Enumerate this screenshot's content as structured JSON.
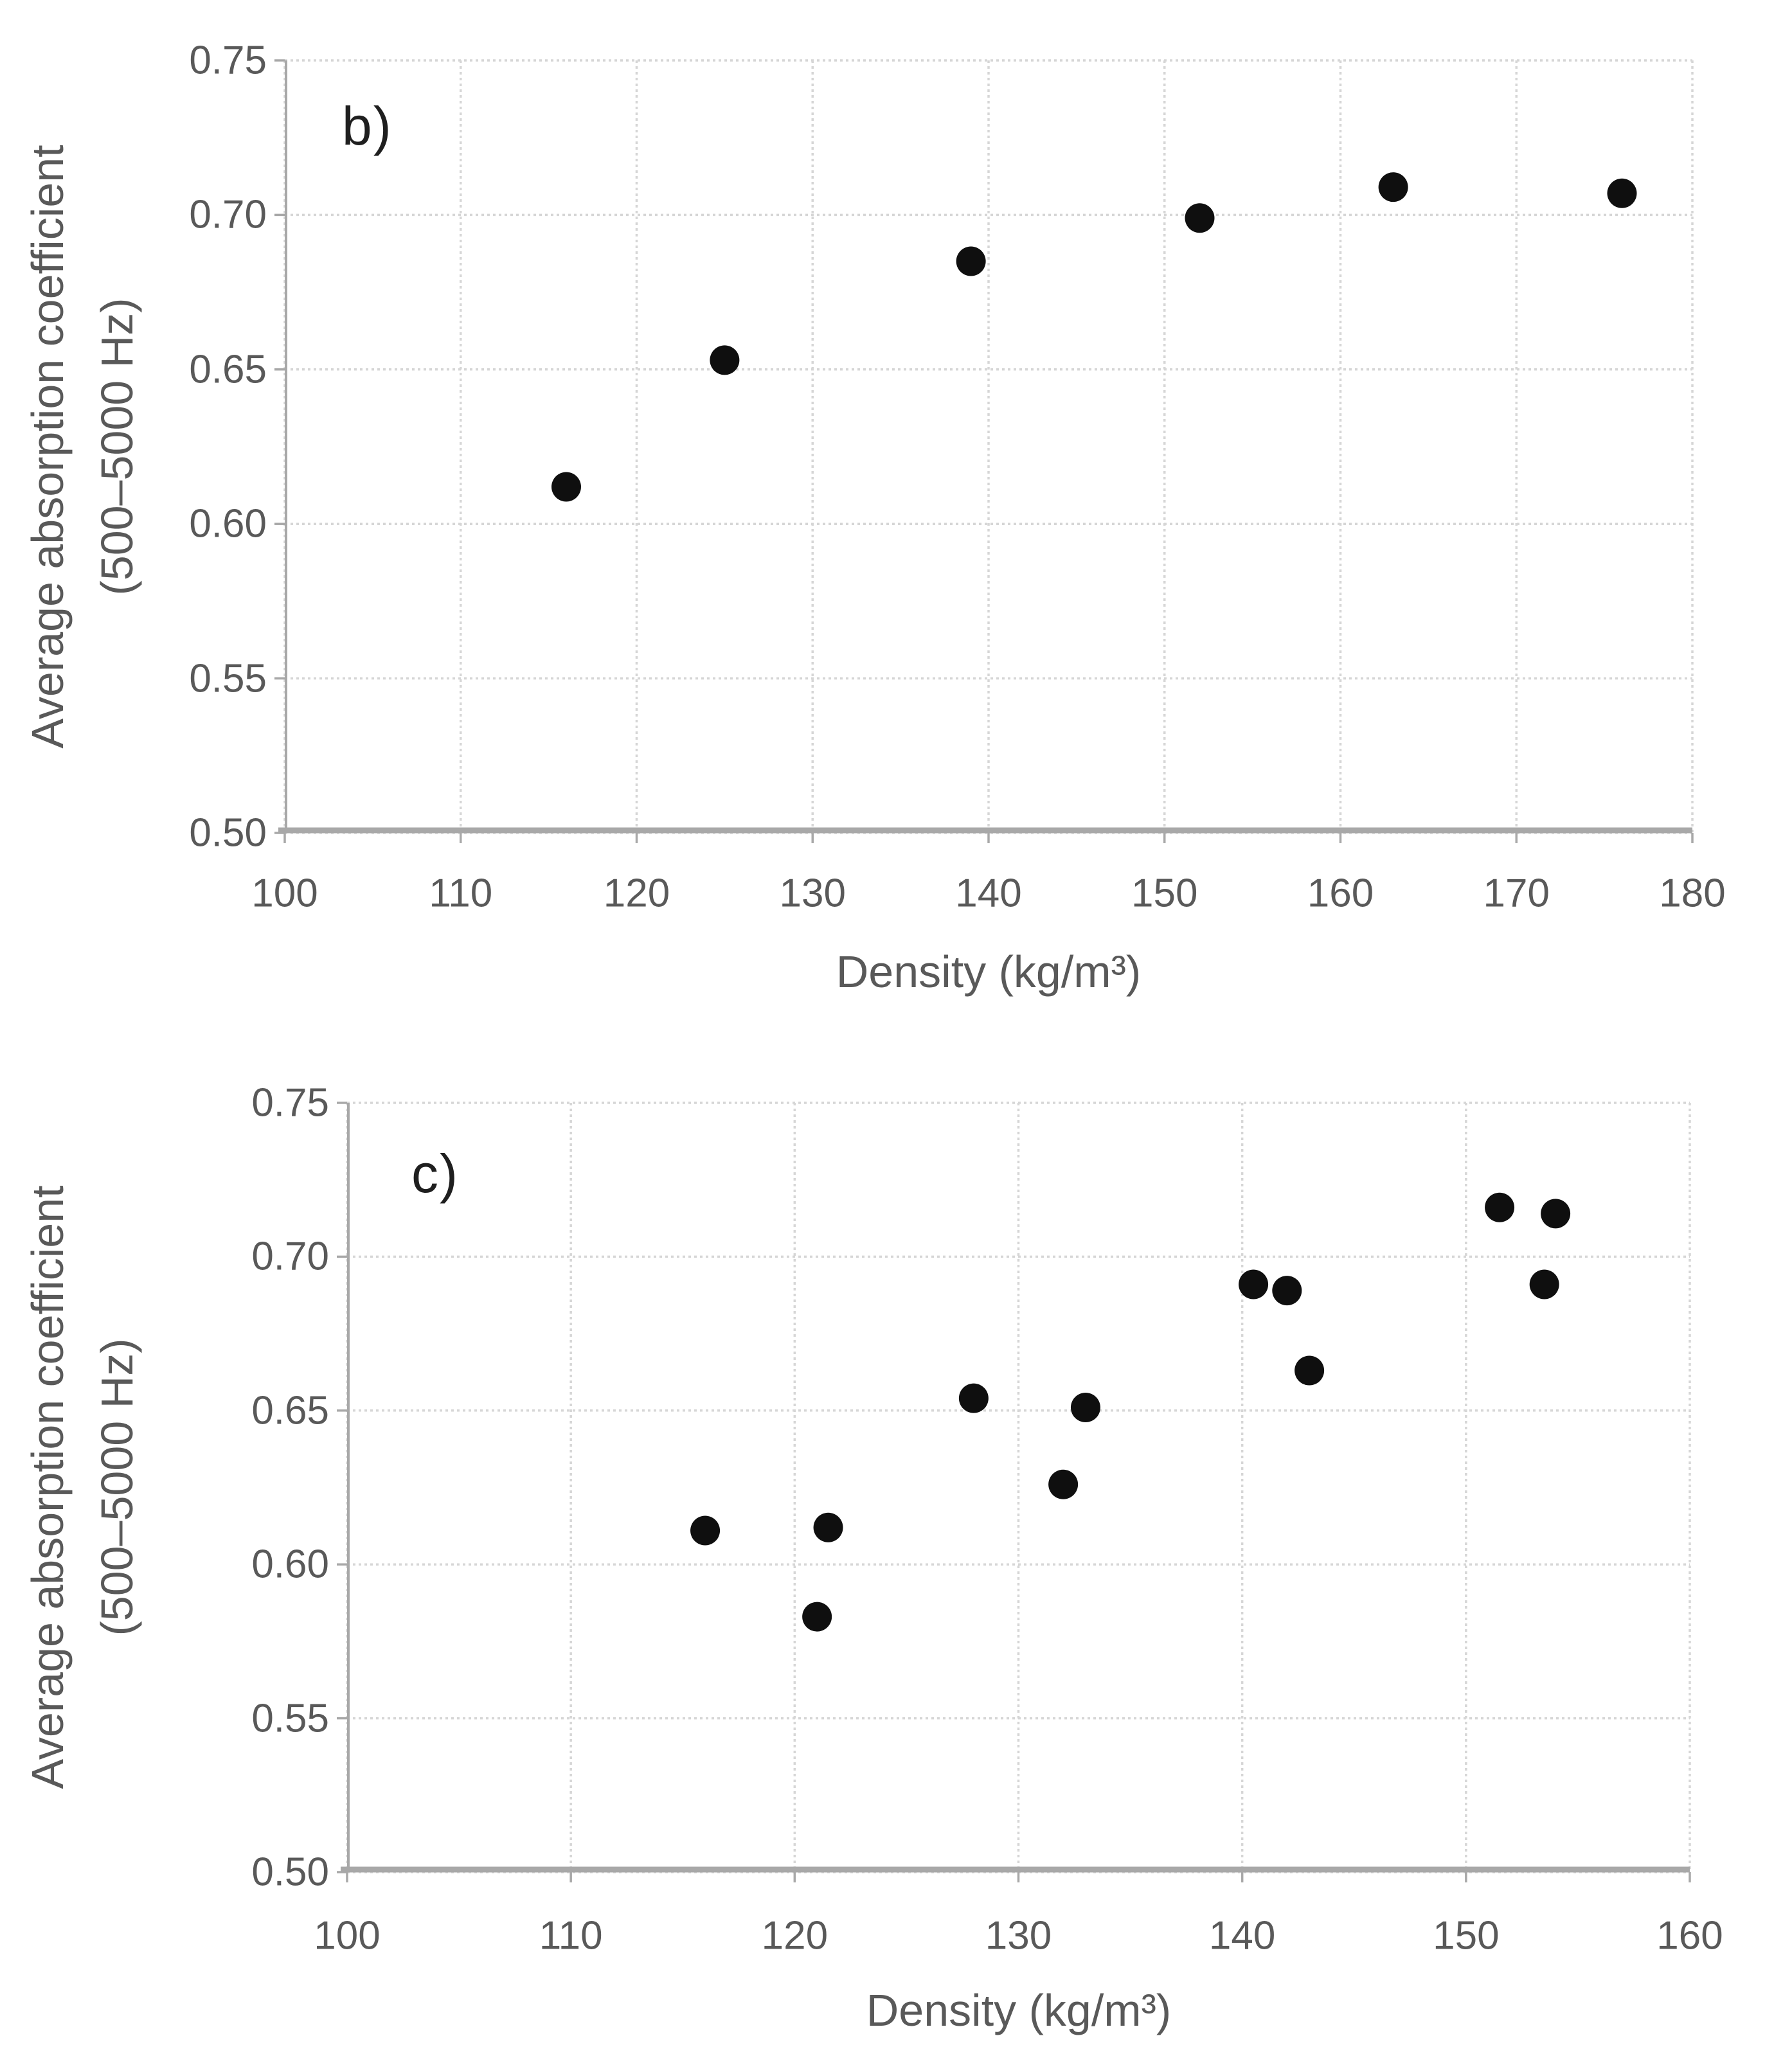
{
  "styles": {
    "marker_color": "#0f0f0f",
    "grid_color": "#d6d6d6",
    "axis_color": "#a8a8a8",
    "tick_text_color": "#595959",
    "panel_label_color": "#1f1f1f",
    "background_color": "#ffffff"
  },
  "chart_data": [
    {
      "type": "scatter",
      "panel_label": "b)",
      "title": "",
      "xlabel": "Density (kg/m³)",
      "ylabel_line1": "Average absorption coefficient",
      "ylabel_line2": "(500–5000 Hz)",
      "xlim": [
        100,
        180
      ],
      "ylim": [
        0.5,
        0.75
      ],
      "xticks": [
        100,
        110,
        120,
        130,
        140,
        150,
        160,
        170,
        180
      ],
      "yticks": [
        0.5,
        0.55,
        0.6,
        0.65,
        0.7,
        0.75
      ],
      "ytick_decimals": 2,
      "grid": true,
      "legend": false,
      "marker": "filled-circle",
      "points": [
        {
          "x": 116,
          "y": 0.612
        },
        {
          "x": 125,
          "y": 0.653
        },
        {
          "x": 139,
          "y": 0.685
        },
        {
          "x": 152,
          "y": 0.699
        },
        {
          "x": 163,
          "y": 0.709
        },
        {
          "x": 176,
          "y": 0.707
        }
      ]
    },
    {
      "type": "scatter",
      "panel_label": "c)",
      "title": "",
      "xlabel": "Density (kg/m³)",
      "ylabel_line1": "Average absorption coefficient",
      "ylabel_line2": "(500–5000 Hz)",
      "xlim": [
        100,
        160
      ],
      "ylim": [
        0.5,
        0.75
      ],
      "xticks": [
        100,
        110,
        120,
        130,
        140,
        150,
        160
      ],
      "yticks": [
        0.5,
        0.55,
        0.6,
        0.65,
        0.7,
        0.75
      ],
      "ytick_decimals": 2,
      "grid": true,
      "legend": false,
      "marker": "filled-circle",
      "points": [
        {
          "x": 116,
          "y": 0.611
        },
        {
          "x": 121.5,
          "y": 0.612
        },
        {
          "x": 121,
          "y": 0.583
        },
        {
          "x": 128,
          "y": 0.654
        },
        {
          "x": 133,
          "y": 0.651
        },
        {
          "x": 132,
          "y": 0.626
        },
        {
          "x": 140.5,
          "y": 0.691
        },
        {
          "x": 142,
          "y": 0.689
        },
        {
          "x": 143,
          "y": 0.663
        },
        {
          "x": 151.5,
          "y": 0.716
        },
        {
          "x": 154,
          "y": 0.714
        },
        {
          "x": 153.5,
          "y": 0.691
        }
      ]
    }
  ]
}
